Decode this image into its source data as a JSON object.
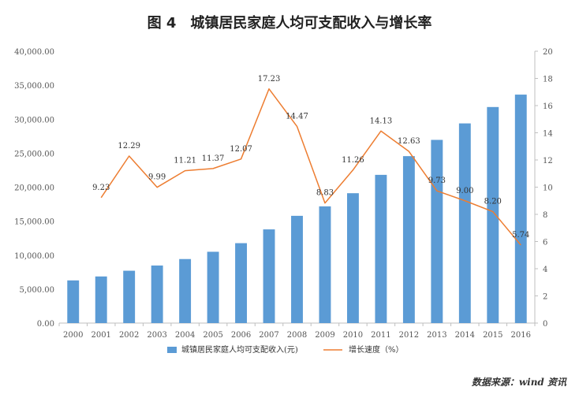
{
  "chart_data": {
    "type": "bar",
    "title": "图 4　城镇居民家庭人均可支配收入与增长率",
    "categories": [
      "2000",
      "2001",
      "2002",
      "2003",
      "2004",
      "2005",
      "2006",
      "2007",
      "2008",
      "2009",
      "2010",
      "2011",
      "2012",
      "2013",
      "2014",
      "2015",
      "2016"
    ],
    "series": [
      {
        "name": "城镇居民家庭人均可支配收入(元)",
        "type": "bar",
        "axis": "left",
        "color": "#5b9bd5",
        "values": [
          6280,
          6860,
          7703,
          8472,
          9422,
          10493,
          11759,
          13786,
          15781,
          17175,
          19109,
          21810,
          24565,
          26955,
          29381,
          31790,
          33616
        ]
      },
      {
        "name": "增长速度（%）",
        "type": "line",
        "axis": "right",
        "color": "#ed7d31",
        "values": [
          null,
          9.23,
          12.29,
          9.99,
          11.21,
          11.37,
          12.07,
          17.23,
          14.47,
          8.83,
          11.26,
          14.13,
          12.63,
          9.73,
          9.0,
          8.2,
          5.74
        ],
        "labels": [
          "",
          "9.23",
          "12.29",
          "9.99",
          "11.21",
          "11.37",
          "12.07",
          "17.23",
          "14.47",
          "8.83",
          "11.26",
          "14.13",
          "12.63",
          "9.73",
          "9.00",
          "8.20",
          "5.74"
        ]
      }
    ],
    "y_left": {
      "min": 0,
      "max": 40000,
      "step": 5000,
      "tick_labels": [
        "0.00",
        "5,000.00",
        "10,000.00",
        "15,000.00",
        "20,000.00",
        "25,000.00",
        "30,000.00",
        "35,000.00",
        "40,000.00"
      ]
    },
    "y_right": {
      "min": 0,
      "max": 20,
      "step": 2,
      "tick_labels": [
        "0",
        "2",
        "4",
        "6",
        "8",
        "10",
        "12",
        "14",
        "16",
        "18",
        "20"
      ]
    },
    "grid": false,
    "legend_position": "bottom-center",
    "source_note": "数据来源：wind 资讯"
  }
}
